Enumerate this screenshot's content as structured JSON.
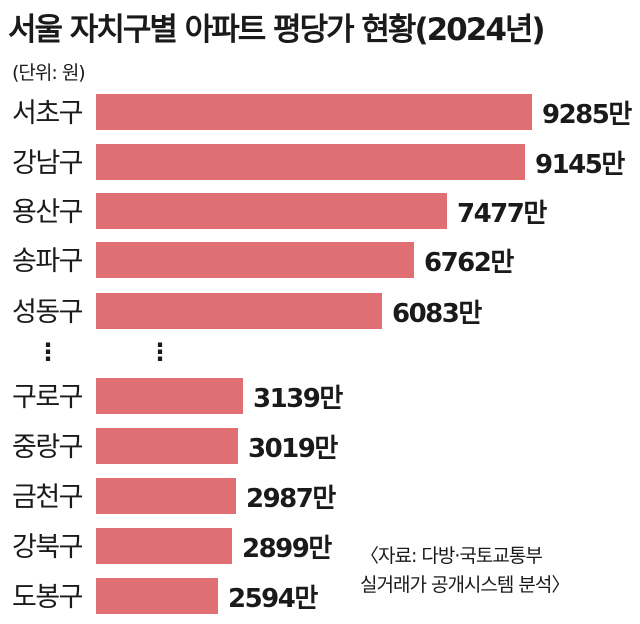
{
  "title": "서울 자치구별 아파트 평당가 현황(2024년)",
  "unit_note": "(단위: 원)",
  "ellipsis": "⋮",
  "source": {
    "line1": "〈자료: 다방·국토교통부",
    "line2": "실거래가 공개시스템 분석〉"
  },
  "chart_data": {
    "type": "bar",
    "orientation": "horizontal",
    "title": "서울 자치구별 아파트 평당가 현황(2024년)",
    "unit": "원",
    "value_suffix": "만",
    "categories": [
      "서초구",
      "강남구",
      "용산구",
      "송파구",
      "성동구",
      "구로구",
      "중랑구",
      "금천구",
      "강북구",
      "도봉구"
    ],
    "values": [
      9285,
      9145,
      7477,
      6762,
      6083,
      3139,
      3019,
      2987,
      2899,
      2594
    ],
    "value_labels": [
      "9285만",
      "9145만",
      "7477만",
      "6762만",
      "6083만",
      "3139만",
      "3019만",
      "2987만",
      "2899만",
      "2594만"
    ],
    "gap_after_index": 4,
    "bar_color": "#e06f74",
    "axis_visible": false,
    "grid": false,
    "legend": "none"
  }
}
